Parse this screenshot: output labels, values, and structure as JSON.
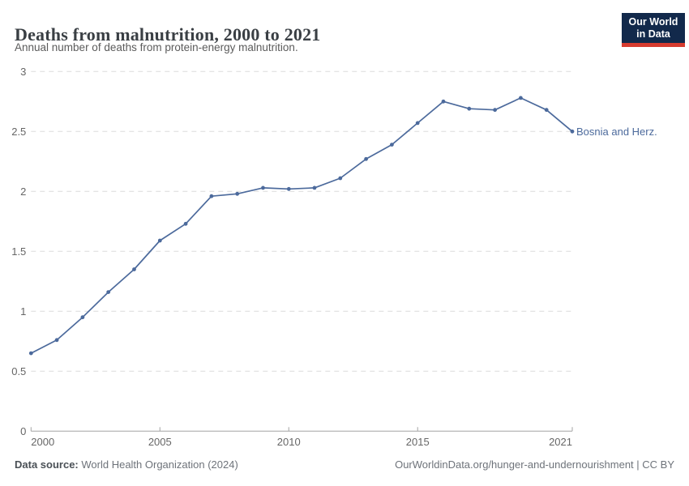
{
  "header": {
    "title": "Deaths from malnutrition, 2000 to 2021",
    "subtitle": "Annual number of deaths from protein-energy malnutrition.",
    "logo_line1": "Our World",
    "logo_line2": "in Data"
  },
  "chart_data": {
    "type": "line",
    "title": "Deaths from malnutrition, 2000 to 2021",
    "xlabel": "",
    "ylabel": "",
    "xlim": [
      2000,
      2021
    ],
    "ylim": [
      0,
      3
    ],
    "x_ticks": [
      2000,
      2005,
      2010,
      2015,
      2021
    ],
    "y_ticks": [
      0,
      0.5,
      1,
      1.5,
      2,
      2.5,
      3
    ],
    "grid": "horizontal-dashed",
    "legend_position": "end-of-line-label",
    "series": [
      {
        "name": "Bosnia and Herz.",
        "color": "#4C6A9C",
        "x": [
          2000,
          2001,
          2002,
          2003,
          2004,
          2005,
          2006,
          2007,
          2008,
          2009,
          2010,
          2011,
          2012,
          2013,
          2014,
          2015,
          2016,
          2017,
          2018,
          2019,
          2020,
          2021
        ],
        "values": [
          0.65,
          0.76,
          0.95,
          1.16,
          1.35,
          1.59,
          1.73,
          1.96,
          1.98,
          2.03,
          2.02,
          2.03,
          2.11,
          2.27,
          2.39,
          2.57,
          2.75,
          2.69,
          2.68,
          2.78,
          2.68,
          2.5
        ]
      }
    ]
  },
  "footer": {
    "source_label": "Data source:",
    "source_value": "World Health Organization (2024)",
    "rights": "OurWorldinData.org/hunger-and-undernourishment | CC BY"
  },
  "colors": {
    "series_blue": "#4C6A9C",
    "logo_navy": "#12294B",
    "logo_red": "#D63B2F",
    "grid_gray": "#DCDCDC",
    "axis_gray": "#A3A3A3",
    "tick_label_gray": "#666666"
  }
}
